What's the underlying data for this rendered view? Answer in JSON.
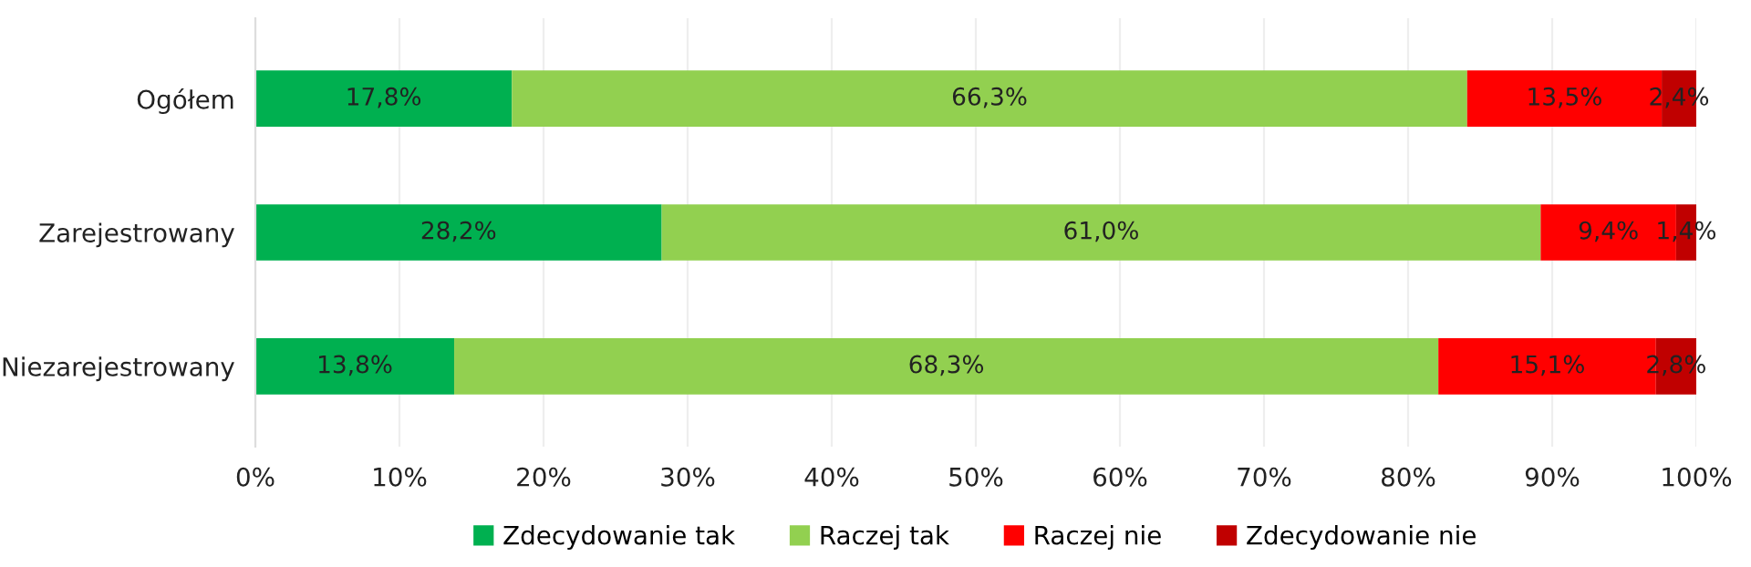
{
  "chart_data": {
    "type": "bar",
    "orientation": "horizontal",
    "stacked": true,
    "categories": [
      "Ogółem",
      "Zarejestrowany",
      "Niezarejestrowany"
    ],
    "series": [
      {
        "name": "Zdecydowanie tak",
        "color": "#00b050",
        "values": [
          17.8,
          28.2,
          13.8
        ],
        "value_labels": [
          "17,8%",
          "28,2%",
          "13,8%"
        ]
      },
      {
        "name": "Raczej tak",
        "color": "#92d050",
        "values": [
          66.3,
          61.0,
          68.3
        ],
        "value_labels": [
          "66,3%",
          "61,0%",
          "68,3%"
        ]
      },
      {
        "name": "Raczej nie",
        "color": "#ff0000",
        "values": [
          13.5,
          9.4,
          15.1
        ],
        "value_labels": [
          "13,5%",
          "9,4%",
          "15,1%"
        ]
      },
      {
        "name": "Zdecydowanie nie",
        "color": "#c00000",
        "values": [
          2.4,
          1.4,
          2.8
        ],
        "value_labels": [
          "2,4%",
          "1,4%",
          "2,8%"
        ]
      }
    ],
    "xlim": [
      0,
      100
    ],
    "xticks": [
      {
        "value": 0,
        "label": "0%"
      },
      {
        "value": 10,
        "label": "10%"
      },
      {
        "value": 20,
        "label": "20%"
      },
      {
        "value": 30,
        "label": "30%"
      },
      {
        "value": 40,
        "label": "40%"
      },
      {
        "value": 50,
        "label": "50%"
      },
      {
        "value": 60,
        "label": "60%"
      },
      {
        "value": 70,
        "label": "70%"
      },
      {
        "value": 80,
        "label": "80%"
      },
      {
        "value": 90,
        "label": "90%"
      },
      {
        "value": 100,
        "label": "100%"
      }
    ],
    "grid": "x",
    "legend": "bottom"
  }
}
